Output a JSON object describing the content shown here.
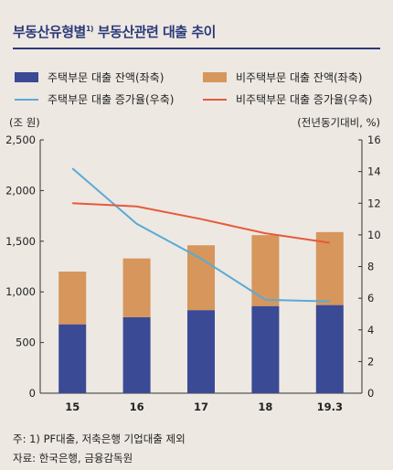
{
  "header": {
    "title": "부동산유형별",
    "title_sup": "1)",
    "title_rest": " 부동산관련 대출 추이"
  },
  "legend": [
    {
      "label": "주택부문 대출 잔액(좌축)",
      "kind": "box",
      "color": "#3b4a94"
    },
    {
      "label": "비주택부문 대출 잔액(좌축)",
      "kind": "box",
      "color": "#d6965c"
    },
    {
      "label": "주택부문 대출 증가율(우축)",
      "kind": "line",
      "color": "#5aaad6"
    },
    {
      "label": "비주택부문 대출 증가율(우축)",
      "kind": "line",
      "color": "#e65a3c"
    }
  ],
  "axis_units": {
    "left": "(조 원)",
    "right": "(전년동기대비, %)"
  },
  "chart_data": {
    "type": "bar",
    "categories": [
      "15",
      "16",
      "17",
      "18",
      "19.3"
    ],
    "series": [
      {
        "name": "주택부문 대출 잔액(좌축)",
        "type": "stacked-bar",
        "axis": "left",
        "color": "#3b4a94",
        "values": [
          680,
          750,
          820,
          860,
          870
        ]
      },
      {
        "name": "비주택부문 대출 잔액(좌축)",
        "type": "stacked-bar",
        "axis": "left",
        "color": "#d6965c",
        "values": [
          520,
          580,
          640,
          700,
          720
        ]
      },
      {
        "name": "주택부문 대출 증가율(우축)",
        "type": "line",
        "axis": "right",
        "color": "#5aaad6",
        "values": [
          14.2,
          10.7,
          8.5,
          5.9,
          5.8
        ]
      },
      {
        "name": "비주택부문 대출 증가율(우축)",
        "type": "line",
        "axis": "right",
        "color": "#e65a3c",
        "values": [
          12.0,
          11.8,
          11.0,
          10.1,
          9.5
        ]
      }
    ],
    "ylim_left": [
      0,
      2500
    ],
    "ylim_right": [
      0,
      16
    ],
    "yticks_left": [
      "0",
      "500",
      "1,000",
      "1,500",
      "2,000",
      "2,500"
    ],
    "yticks_right": [
      "0",
      "2",
      "4",
      "6",
      "8",
      "10",
      "12",
      "14",
      "16"
    ],
    "ylabel_left": "(조 원)",
    "ylabel_right": "(전년동기대비, %)",
    "grid": false
  },
  "notes": {
    "footnote": "주: 1) PF대출, 저축은행 기업대출 제외",
    "source": "자료: 한국은행, 금융감독원"
  }
}
